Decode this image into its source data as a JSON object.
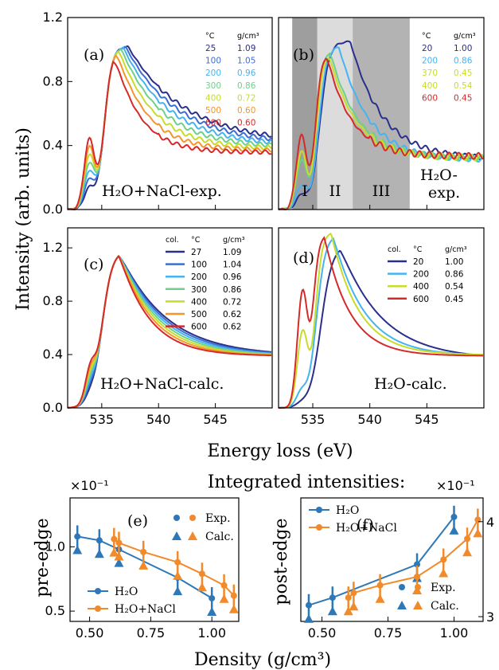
{
  "figure": {
    "top_ylabel": "Intensity (arb. units)",
    "top_xlabel": "Energy loss (eV)",
    "bottom_title": "Integrated intensities:",
    "bottom_xlabel": "Density (g/cm³)",
    "colors": {
      "c20": "#2a2f8c",
      "c100": "#3d6fd2",
      "c200": "#45b4f0",
      "c300": "#6fd08a",
      "c400": "#c8dc2a",
      "c500": "#f5952d",
      "c600": "#d62a2a",
      "blue": "#2e78b8",
      "orange": "#f08a2a"
    }
  },
  "chart_data": [
    {
      "id": "a",
      "type": "line",
      "panel_label": "(a)",
      "annotation": "H₂O+NaCl-exp.",
      "x_ticks": [],
      "y_ticks": [
        "0.0",
        "0.4",
        "0.8",
        "1.2"
      ],
      "ylim": [
        0,
        1.2
      ],
      "xlim": [
        532,
        550
      ],
      "table": {
        "headers": [
          "°C",
          "g/cm³"
        ],
        "rows": [
          [
            "25",
            "1.09"
          ],
          [
            "100",
            "1.05"
          ],
          [
            "200",
            "0.96"
          ],
          [
            "300",
            "0.86"
          ],
          [
            "400",
            "0.72"
          ],
          [
            "500",
            "0.60"
          ],
          [
            "600",
            "0.60"
          ]
        ]
      }
    },
    {
      "id": "b",
      "type": "line",
      "panel_label": "(b)",
      "annotation": "H₂O-",
      "annotation2": "exp.",
      "regions": [
        "I",
        "II",
        "III"
      ],
      "ylim": [
        0,
        1.2
      ],
      "xlim": [
        532,
        550
      ],
      "table": {
        "headers": [
          "°C",
          "g/cm³"
        ],
        "rows": [
          [
            "20",
            "1.00"
          ],
          [
            "200",
            "0.86"
          ],
          [
            "370",
            "0.45"
          ],
          [
            "400",
            "0.54"
          ],
          [
            "600",
            "0.45"
          ]
        ]
      }
    },
    {
      "id": "c",
      "type": "line",
      "panel_label": "(c)",
      "annotation": "H₂O+NaCl-calc.",
      "x_ticks": [
        "535",
        "540",
        "545"
      ],
      "y_ticks": [
        "0.0",
        "0.4",
        "0.8",
        "1.2"
      ],
      "ylim": [
        0,
        1.35
      ],
      "xlim": [
        532,
        550
      ],
      "table": {
        "headers": [
          "col.",
          "°C",
          "g/cm³"
        ],
        "rows": [
          [
            "27",
            "1.09"
          ],
          [
            "100",
            "1.04"
          ],
          [
            "200",
            "0.96"
          ],
          [
            "300",
            "0.86"
          ],
          [
            "400",
            "0.72"
          ],
          [
            "500",
            "0.62"
          ],
          [
            "600",
            "0.62"
          ]
        ]
      }
    },
    {
      "id": "d",
      "type": "line",
      "panel_label": "(d)",
      "annotation": "H₂O-calc.",
      "x_ticks": [
        "535",
        "540",
        "545"
      ],
      "ylim": [
        0,
        1.35
      ],
      "xlim": [
        532,
        550
      ],
      "table": {
        "headers": [
          "col.",
          "°C",
          "g/cm³"
        ],
        "rows": [
          [
            "20",
            "1.00"
          ],
          [
            "200",
            "0.86"
          ],
          [
            "400",
            "0.54"
          ],
          [
            "600",
            "0.45"
          ]
        ]
      }
    },
    {
      "id": "e",
      "type": "scatter",
      "panel_label": "(e)",
      "ylabel": "pre-edge",
      "multiplier": "×10⁻¹",
      "x_ticks": [
        "0.50",
        "0.75",
        "1.00"
      ],
      "y_ticks": [
        "0.5",
        "1.0"
      ],
      "xlim": [
        0.42,
        1.11
      ],
      "ylim": [
        0.42,
        1.38
      ],
      "legend_markers": [
        "Exp.",
        "Calc."
      ],
      "legend_series": [
        "H₂O",
        "H₂O+NaCl"
      ],
      "series": [
        {
          "name": "H₂O",
          "x": [
            0.45,
            0.54,
            0.62,
            0.86,
            1.0
          ],
          "y": [
            1.08,
            1.05,
            0.98,
            0.76,
            0.6
          ]
        },
        {
          "name": "H₂O+NaCl",
          "x": [
            0.6,
            0.62,
            0.72,
            0.86,
            0.96,
            1.05,
            1.09
          ],
          "y": [
            1.06,
            1.03,
            0.96,
            0.88,
            0.79,
            0.7,
            0.62
          ]
        }
      ]
    },
    {
      "id": "f",
      "type": "scatter",
      "panel_label": "(f)",
      "ylabel": "post-edge",
      "multiplier": "×10⁻¹",
      "x_ticks": [
        "0.50",
        "0.75",
        "1.00"
      ],
      "y_ticks": [
        "3",
        "4"
      ],
      "xlim": [
        0.42,
        1.11
      ],
      "ylim": [
        2.95,
        4.25
      ],
      "legend_markers": [
        "Exp.",
        "Calc."
      ],
      "legend_series": [
        "H₂O",
        "H₂O+NaCl"
      ],
      "series": [
        {
          "name": "H₂O",
          "x": [
            0.45,
            0.54,
            0.86,
            1.0
          ],
          "y": [
            3.12,
            3.2,
            3.55,
            4.05
          ]
        },
        {
          "name": "H₂O+NaCl",
          "x": [
            0.6,
            0.62,
            0.72,
            0.86,
            0.96,
            1.05,
            1.09
          ],
          "y": [
            3.2,
            3.25,
            3.33,
            3.42,
            3.6,
            3.82,
            4.02
          ]
        }
      ]
    }
  ]
}
